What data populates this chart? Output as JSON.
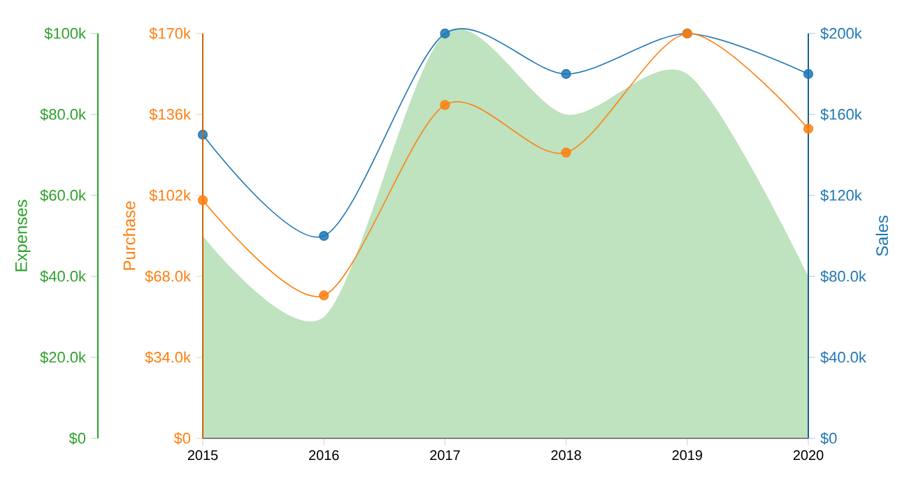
{
  "chart_data": {
    "type": "line",
    "categories": [
      "2015",
      "2016",
      "2017",
      "2018",
      "2019",
      "2020"
    ],
    "ylabel": "Purchase",
    "y2label": "Sales",
    "y3label": "Expenses",
    "ylim": [
      0,
      170000
    ],
    "yticks": [
      {
        "value": 0,
        "label": "$0"
      },
      {
        "value": 34000,
        "label": "$34.0k"
      },
      {
        "value": 68000,
        "label": "$68.0k"
      },
      {
        "value": 102000,
        "label": "$102k"
      },
      {
        "value": 136000,
        "label": "$136k"
      },
      {
        "value": 170000,
        "label": "$170k"
      }
    ],
    "y2lim": [
      0,
      200000
    ],
    "y2ticks": [
      {
        "value": 0,
        "label": "$0"
      },
      {
        "value": 40000,
        "label": "$40.0k"
      },
      {
        "value": 80000,
        "label": "$80.0k"
      },
      {
        "value": 120000,
        "label": "$120k"
      },
      {
        "value": 160000,
        "label": "$160k"
      },
      {
        "value": 200000,
        "label": "$200k"
      }
    ],
    "y3lim": [
      0,
      100000
    ],
    "y3ticks": [
      {
        "value": 0,
        "label": "$0"
      },
      {
        "value": 20000,
        "label": "$20.0k"
      },
      {
        "value": 40000,
        "label": "$40.0k"
      },
      {
        "value": 60000,
        "label": "$60.0k"
      },
      {
        "value": 80000,
        "label": "$80.0k"
      },
      {
        "value": 100000,
        "label": "$100k"
      }
    ],
    "series": [
      {
        "type": "area",
        "axis": "y3",
        "color": "#2ca02c",
        "marker": "none",
        "values": [
          50000,
          30000,
          100000,
          80000,
          90000,
          40000
        ]
      },
      {
        "axis": "y",
        "color": "#ff7f0e",
        "marker": "circle",
        "values": [
          100000,
          60000,
          140000,
          120000,
          170000,
          130000
        ]
      },
      {
        "axis": "y2",
        "color": "#1f77b4",
        "marker": "circle",
        "values": [
          150000,
          100000,
          200000,
          180000,
          200000,
          180000
        ]
      }
    ]
  }
}
